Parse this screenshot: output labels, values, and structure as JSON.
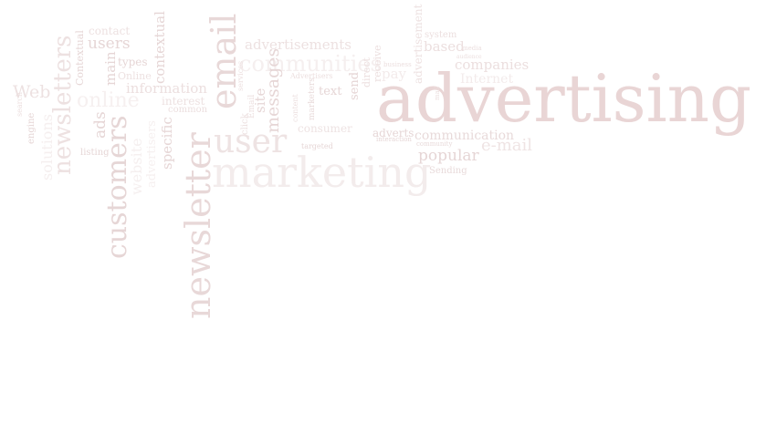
{
  "word_cloud": {
    "colors": {
      "accent": "#e8d6d6",
      "mid": "#eadcdc",
      "light": "#f1e8e8",
      "faint": "#f6f1f1"
    },
    "words": [
      "advertising",
      "marketing",
      "newsletter",
      "email",
      "customers",
      "newsletters",
      "user",
      "messages",
      "site",
      "advertisements",
      "communities",
      "companies",
      "based",
      "system",
      "Internet",
      "communication",
      "e-mail",
      "popular",
      "Sending",
      "advertisement",
      "adverts",
      "consumer",
      "text",
      "send",
      "direct",
      "receive",
      "information",
      "interest",
      "common",
      "specific",
      "contextual",
      "users",
      "contact",
      "types",
      "main",
      "Online",
      "ads",
      "listing",
      "Web",
      "online",
      "Contextual",
      "engine",
      "solutions",
      "website",
      "advertisers",
      "community",
      "targeted",
      "interaction",
      "media",
      "audience",
      "business",
      "click",
      "Email",
      "Advertisers",
      "marketers",
      "content",
      "search",
      "pay",
      "services",
      "mail"
    ]
  }
}
